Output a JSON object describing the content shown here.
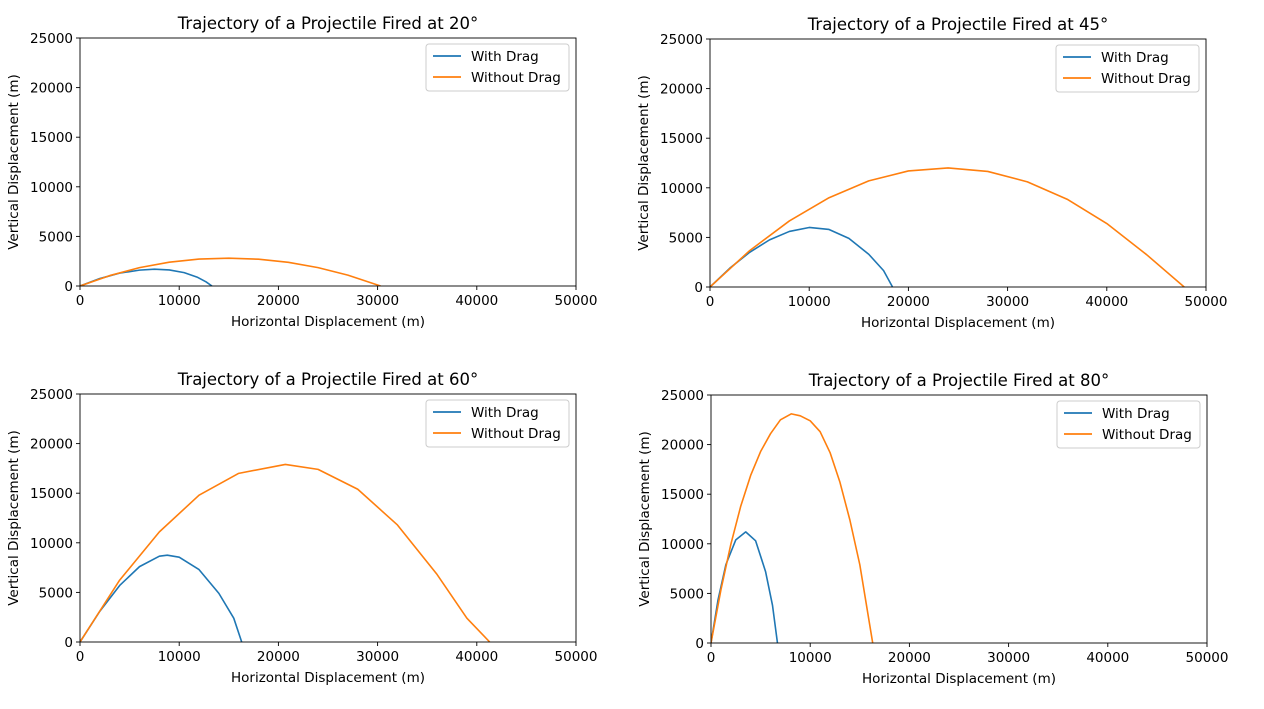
{
  "colors": {
    "with_drag": "#1f77b4",
    "without_drag": "#ff7f0e"
  },
  "chart_data": [
    {
      "type": "line",
      "title": "Trajectory of a Projectile Fired at 20°",
      "xlabel": "Horizontal Displacement (m)",
      "ylabel": "Vertical Displacement (m)",
      "xlim": [
        0,
        50000
      ],
      "ylim": [
        0,
        25000
      ],
      "xticks": [
        "0",
        "10000",
        "20000",
        "30000",
        "40000",
        "50000"
      ],
      "yticks": [
        "0",
        "5000",
        "10000",
        "15000",
        "20000",
        "25000"
      ],
      "legend_position": "top-right",
      "grid": false,
      "series": [
        {
          "name": "With Drag",
          "x": [
            0,
            2000,
            4000,
            6000,
            7500,
            9000,
            10500,
            11800,
            12700,
            13300
          ],
          "y": [
            0,
            750,
            1300,
            1600,
            1700,
            1620,
            1350,
            900,
            420,
            0
          ]
        },
        {
          "name": "Without Drag",
          "x": [
            0,
            3000,
            6000,
            9000,
            12000,
            15000,
            18000,
            21000,
            24000,
            27000,
            30300
          ],
          "y": [
            0,
            1050,
            1850,
            2400,
            2720,
            2800,
            2700,
            2390,
            1850,
            1100,
            0
          ]
        }
      ]
    },
    {
      "type": "line",
      "title": "Trajectory of a Projectile Fired at 45°",
      "xlabel": "Horizontal Displacement (m)",
      "ylabel": "Vertical Displacement (m)",
      "xlim": [
        0,
        50000
      ],
      "ylim": [
        0,
        25000
      ],
      "xticks": [
        "0",
        "10000",
        "20000",
        "30000",
        "40000",
        "50000"
      ],
      "yticks": [
        "0",
        "5000",
        "10000",
        "15000",
        "20000",
        "25000"
      ],
      "legend_position": "top-right",
      "grid": false,
      "series": [
        {
          "name": "With Drag",
          "x": [
            0,
            2000,
            4000,
            6000,
            8000,
            10000,
            12000,
            14000,
            16000,
            17500,
            18400
          ],
          "y": [
            0,
            1900,
            3500,
            4750,
            5600,
            6000,
            5800,
            4900,
            3300,
            1650,
            0
          ]
        },
        {
          "name": "Without Drag",
          "x": [
            0,
            4000,
            8000,
            12000,
            16000,
            20000,
            24000,
            28000,
            32000,
            36000,
            40000,
            44000,
            47800
          ],
          "y": [
            0,
            3670,
            6660,
            9000,
            10700,
            11700,
            12000,
            11650,
            10600,
            8850,
            6400,
            3270,
            0
          ]
        }
      ]
    },
    {
      "type": "line",
      "title": "Trajectory of a Projectile Fired at 60°",
      "xlabel": "Horizontal Displacement (m)",
      "ylabel": "Vertical Displacement (m)",
      "xlim": [
        0,
        50000
      ],
      "ylim": [
        0,
        25000
      ],
      "xticks": [
        "0",
        "10000",
        "20000",
        "30000",
        "40000",
        "50000"
      ],
      "yticks": [
        "0",
        "5000",
        "10000",
        "15000",
        "20000",
        "25000"
      ],
      "legend_position": "top-right",
      "grid": false,
      "series": [
        {
          "name": "With Drag",
          "x": [
            0,
            2000,
            4000,
            6000,
            8000,
            8800,
            10000,
            12000,
            14000,
            15500,
            16300
          ],
          "y": [
            0,
            3100,
            5700,
            7600,
            8650,
            8750,
            8550,
            7300,
            4900,
            2400,
            0
          ]
        },
        {
          "name": "Without Drag",
          "x": [
            0,
            4000,
            8000,
            12000,
            16000,
            20700,
            24000,
            28000,
            32000,
            36000,
            39000,
            41300
          ],
          "y": [
            0,
            6240,
            11100,
            14800,
            17000,
            17900,
            17400,
            15400,
            11800,
            6800,
            2400,
            0
          ]
        }
      ]
    },
    {
      "type": "line",
      "title": "Trajectory of a Projectile Fired at 80°",
      "xlabel": "Horizontal Displacement (m)",
      "ylabel": "Vertical Displacement (m)",
      "xlim": [
        0,
        50000
      ],
      "ylim": [
        0,
        25000
      ],
      "xticks": [
        "0",
        "10000",
        "20000",
        "30000",
        "40000",
        "50000"
      ],
      "yticks": [
        "0",
        "5000",
        "10000",
        "15000",
        "20000",
        "25000"
      ],
      "legend_position": "top-right",
      "grid": false,
      "series": [
        {
          "name": "With Drag",
          "x": [
            0,
            700,
            1500,
            2500,
            3500,
            4500,
            5500,
            6200,
            6700
          ],
          "y": [
            0,
            4300,
            7900,
            10400,
            11200,
            10300,
            7200,
            3800,
            0
          ]
        },
        {
          "name": "Without Drag",
          "x": [
            0,
            1000,
            2000,
            3000,
            4000,
            5000,
            6000,
            7000,
            8100,
            9000,
            10000,
            11000,
            12000,
            13000,
            14000,
            15000,
            16300
          ],
          "y": [
            0,
            5360,
            9950,
            13800,
            16900,
            19300,
            21100,
            22500,
            23100,
            22900,
            22400,
            21300,
            19200,
            16200,
            12400,
            7900,
            0
          ]
        }
      ]
    }
  ]
}
